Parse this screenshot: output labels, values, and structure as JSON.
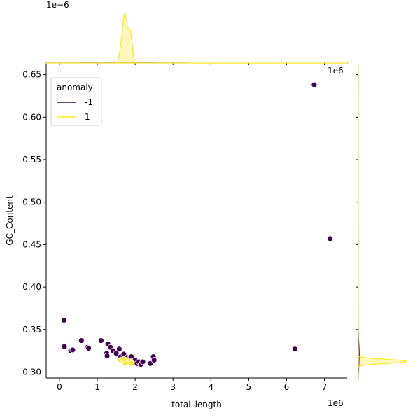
{
  "chart_data": {
    "type": "scatter",
    "xlabel": "total_length",
    "ylabel": "GC_Content",
    "x_offset_label": "1e6",
    "top_marginal_offset_label": "1e−6",
    "right_marginal_offset_label": "1e6",
    "xlim": [
      -0.35,
      7.6
    ],
    "ylim": [
      0.293,
      0.662
    ],
    "x_ticks": [
      0,
      1,
      2,
      3,
      4,
      5,
      6,
      7
    ],
    "x_tick_labels": [
      "0",
      "1",
      "2",
      "3",
      "4",
      "5",
      "6",
      "7"
    ],
    "y_ticks": [
      0.3,
      0.35,
      0.4,
      0.45,
      0.5,
      0.55,
      0.6,
      0.65
    ],
    "y_tick_labels": [
      "0.30",
      "0.35",
      "0.40",
      "0.45",
      "0.50",
      "0.55",
      "0.60",
      "0.65"
    ],
    "legend": {
      "title": "anomaly",
      "placement": "top-left",
      "entries": [
        {
          "label": "-1",
          "color": "#440154"
        },
        {
          "label": "1",
          "color": "#fde725"
        }
      ]
    },
    "series": [
      {
        "name": "-1",
        "color": "#440154",
        "points": [
          [
            0.12,
            0.361
          ],
          [
            0.13,
            0.33
          ],
          [
            0.3,
            0.325
          ],
          [
            0.35,
            0.326
          ],
          [
            0.58,
            0.337
          ],
          [
            0.74,
            0.329
          ],
          [
            0.77,
            0.328
          ],
          [
            1.1,
            0.337
          ],
          [
            1.25,
            0.322
          ],
          [
            1.26,
            0.319
          ],
          [
            1.28,
            0.333
          ],
          [
            1.35,
            0.329
          ],
          [
            1.42,
            0.325
          ],
          [
            1.5,
            0.322
          ],
          [
            1.58,
            0.327
          ],
          [
            1.62,
            0.318
          ],
          [
            1.66,
            0.316
          ],
          [
            1.7,
            0.321
          ],
          [
            1.74,
            0.315
          ],
          [
            1.78,
            0.317
          ],
          [
            1.82,
            0.314
          ],
          [
            1.86,
            0.316
          ],
          [
            1.9,
            0.318
          ],
          [
            1.92,
            0.313
          ],
          [
            1.96,
            0.311
          ],
          [
            2.0,
            0.314
          ],
          [
            2.05,
            0.31
          ],
          [
            2.1,
            0.312
          ],
          [
            2.15,
            0.309
          ],
          [
            2.2,
            0.312
          ],
          [
            2.4,
            0.31
          ],
          [
            2.48,
            0.318
          ],
          [
            2.5,
            0.314
          ],
          [
            6.22,
            0.327
          ],
          [
            6.73,
            0.638
          ],
          [
            7.15,
            0.457
          ]
        ]
      },
      {
        "name": "1",
        "color": "#fde725",
        "points": [
          [
            1.62,
            0.314
          ],
          [
            1.68,
            0.313
          ],
          [
            1.72,
            0.312
          ],
          [
            1.76,
            0.314
          ],
          [
            1.8,
            0.313
          ],
          [
            1.84,
            0.311
          ],
          [
            1.88,
            0.312
          ],
          [
            1.9,
            0.31
          ],
          [
            1.74,
            0.311
          ],
          [
            1.7,
            0.315
          ]
        ]
      }
    ]
  }
}
